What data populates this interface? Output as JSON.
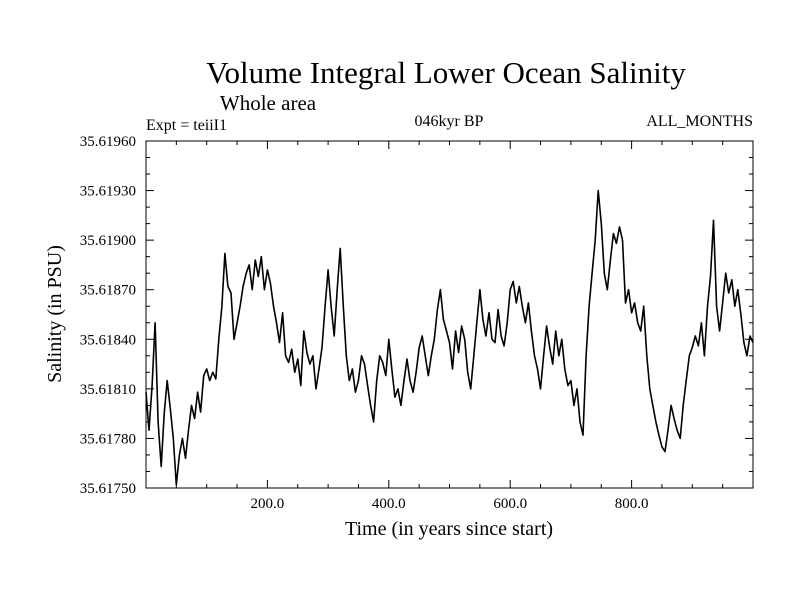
{
  "chart_data": {
    "type": "line",
    "title": "Volume Integral Lower Ocean Salinity",
    "subtitle": "Whole area",
    "annotations": {
      "left": "Expt = teiiI1",
      "center": "046kyr BP",
      "right": "ALL_MONTHS"
    },
    "xlabel": "Time (in years since start)",
    "ylabel": "Salinity (in PSU)",
    "xlim": [
      0,
      1000
    ],
    "ylim": [
      35.6175,
      35.6196
    ],
    "xticks": [
      200,
      400,
      600,
      800
    ],
    "xtick_labels": [
      "200.0",
      "400.0",
      "600.0",
      "800.0"
    ],
    "yticks": [
      35.6175,
      35.6178,
      35.6181,
      35.6184,
      35.6187,
      35.619,
      35.6193,
      35.6196
    ],
    "ytick_labels": [
      "35.61750",
      "35.61780",
      "35.61810",
      "35.61840",
      "35.61870",
      "35.61900",
      "35.61930",
      "35.61960"
    ],
    "grid": false,
    "series": [
      {
        "color": "#000000",
        "x": [
          0,
          5,
          10,
          15,
          20,
          25,
          30,
          35,
          40,
          45,
          50,
          55,
          60,
          65,
          70,
          75,
          80,
          85,
          90,
          95,
          100,
          105,
          110,
          115,
          120,
          125,
          130,
          135,
          140,
          145,
          150,
          155,
          160,
          165,
          170,
          175,
          180,
          185,
          190,
          195,
          200,
          205,
          210,
          215,
          220,
          225,
          230,
          235,
          240,
          245,
          250,
          255,
          260,
          265,
          270,
          275,
          280,
          285,
          290,
          295,
          300,
          305,
          310,
          315,
          320,
          325,
          330,
          335,
          340,
          345,
          350,
          355,
          360,
          365,
          370,
          375,
          380,
          385,
          390,
          395,
          400,
          405,
          410,
          415,
          420,
          425,
          430,
          435,
          440,
          445,
          450,
          455,
          460,
          465,
          470,
          475,
          480,
          485,
          490,
          495,
          500,
          505,
          510,
          515,
          520,
          525,
          530,
          535,
          540,
          545,
          550,
          555,
          560,
          565,
          570,
          575,
          580,
          585,
          590,
          595,
          600,
          605,
          610,
          615,
          620,
          625,
          630,
          635,
          640,
          645,
          650,
          655,
          660,
          665,
          670,
          675,
          680,
          685,
          690,
          695,
          700,
          705,
          710,
          715,
          720,
          725,
          730,
          735,
          740,
          745,
          750,
          755,
          760,
          765,
          770,
          775,
          780,
          785,
          790,
          795,
          800,
          805,
          810,
          815,
          820,
          825,
          830,
          835,
          840,
          845,
          850,
          855,
          860,
          865,
          870,
          875,
          880,
          885,
          890,
          895,
          900,
          905,
          910,
          915,
          920,
          925,
          930,
          935,
          940,
          945,
          950,
          955,
          960,
          965,
          970,
          975,
          980,
          985,
          990,
          995,
          1000
        ],
        "y": [
          35.61808,
          35.61785,
          35.61812,
          35.6185,
          35.6179,
          35.61763,
          35.61795,
          35.61815,
          35.61798,
          35.6178,
          35.61752,
          35.6177,
          35.6178,
          35.61768,
          35.61785,
          35.618,
          35.61792,
          35.61808,
          35.61796,
          35.61818,
          35.61822,
          35.61815,
          35.6182,
          35.61816,
          35.6184,
          35.6186,
          35.61892,
          35.61872,
          35.61868,
          35.6184,
          35.6185,
          35.6186,
          35.61872,
          35.6188,
          35.61885,
          35.6187,
          35.61888,
          35.61878,
          35.6189,
          35.6187,
          35.61882,
          35.61874,
          35.6186,
          35.6185,
          35.61838,
          35.61856,
          35.6183,
          35.61826,
          35.61834,
          35.6182,
          35.61828,
          35.61812,
          35.61845,
          35.61832,
          35.61825,
          35.6183,
          35.6181,
          35.61822,
          35.61835,
          35.6186,
          35.61882,
          35.6186,
          35.61842,
          35.6187,
          35.61895,
          35.6186,
          35.6183,
          35.61815,
          35.61822,
          35.61808,
          35.61815,
          35.6183,
          35.61825,
          35.61812,
          35.618,
          35.6179,
          35.61815,
          35.6183,
          35.61826,
          35.61818,
          35.6184,
          35.61822,
          35.61805,
          35.6181,
          35.618,
          35.61815,
          35.61828,
          35.61815,
          35.61808,
          35.6182,
          35.61835,
          35.61842,
          35.6183,
          35.61818,
          35.6183,
          35.6184,
          35.61858,
          35.6187,
          35.61852,
          35.61845,
          35.61838,
          35.61822,
          35.61845,
          35.61832,
          35.61848,
          35.6184,
          35.6182,
          35.6181,
          35.6183,
          35.6185,
          35.6187,
          35.61852,
          35.61842,
          35.61856,
          35.6184,
          35.61838,
          35.61858,
          35.61842,
          35.61836,
          35.6185,
          35.6187,
          35.61875,
          35.61862,
          35.61872,
          35.6186,
          35.6185,
          35.61862,
          35.61845,
          35.6183,
          35.61822,
          35.6181,
          35.6183,
          35.61848,
          35.61835,
          35.61825,
          35.61845,
          35.6183,
          35.6184,
          35.61822,
          35.61812,
          35.61815,
          35.618,
          35.6181,
          35.6179,
          35.61782,
          35.6183,
          35.6186,
          35.6188,
          35.619,
          35.6193,
          35.6191,
          35.6188,
          35.6187,
          35.61888,
          35.61904,
          35.61898,
          35.61908,
          35.619,
          35.61862,
          35.6187,
          35.61856,
          35.61862,
          35.6185,
          35.61845,
          35.6186,
          35.6183,
          35.6181,
          35.618,
          35.6179,
          35.61782,
          35.61775,
          35.61772,
          35.61785,
          35.618,
          35.61792,
          35.61785,
          35.6178,
          35.618,
          35.61815,
          35.6183,
          35.61835,
          35.61842,
          35.61836,
          35.6185,
          35.6183,
          35.6186,
          35.61878,
          35.61912,
          35.6186,
          35.61845,
          35.61862,
          35.6188,
          35.61868,
          35.61876,
          35.6186,
          35.6187,
          35.61855,
          35.61838,
          35.6183,
          35.61842,
          35.61838
        ]
      }
    ]
  }
}
